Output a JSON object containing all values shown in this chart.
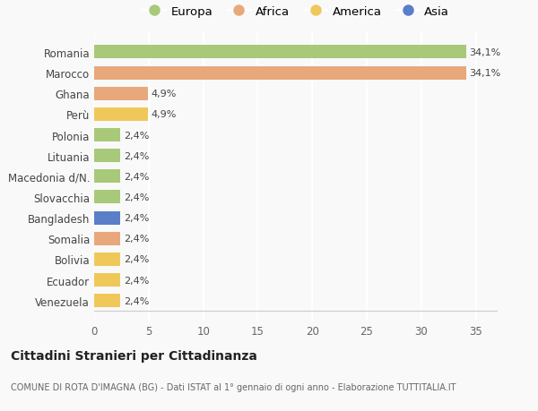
{
  "categories": [
    "Romania",
    "Marocco",
    "Ghana",
    "Perù",
    "Polonia",
    "Lituania",
    "Macedonia d/N.",
    "Slovacchia",
    "Bangladesh",
    "Somalia",
    "Bolivia",
    "Ecuador",
    "Venezuela"
  ],
  "values": [
    34.1,
    34.1,
    4.9,
    4.9,
    2.4,
    2.4,
    2.4,
    2.4,
    2.4,
    2.4,
    2.4,
    2.4,
    2.4
  ],
  "colors": [
    "#a8c97a",
    "#e8a87c",
    "#e8a87c",
    "#f0c85a",
    "#a8c97a",
    "#a8c97a",
    "#a8c97a",
    "#a8c97a",
    "#5b7ec9",
    "#e8a87c",
    "#f0c85a",
    "#f0c85a",
    "#f0c85a"
  ],
  "labels": [
    "34,1%",
    "34,1%",
    "4,9%",
    "4,9%",
    "2,4%",
    "2,4%",
    "2,4%",
    "2,4%",
    "2,4%",
    "2,4%",
    "2,4%",
    "2,4%",
    "2,4%"
  ],
  "legend_names": [
    "Europa",
    "Africa",
    "America",
    "Asia"
  ],
  "legend_colors": [
    "#a8c97a",
    "#e8a87c",
    "#f0c85a",
    "#5b7ec9"
  ],
  "title": "Cittadini Stranieri per Cittadinanza",
  "subtitle": "COMUNE DI ROTA D'IMAGNA (BG) - Dati ISTAT al 1° gennaio di ogni anno - Elaborazione TUTTITALIA.IT",
  "xlim": [
    0,
    37
  ],
  "xticks": [
    0,
    5,
    10,
    15,
    20,
    25,
    30,
    35
  ],
  "bg_color": "#f9f9f9",
  "grid_color": "#e8e8e8"
}
